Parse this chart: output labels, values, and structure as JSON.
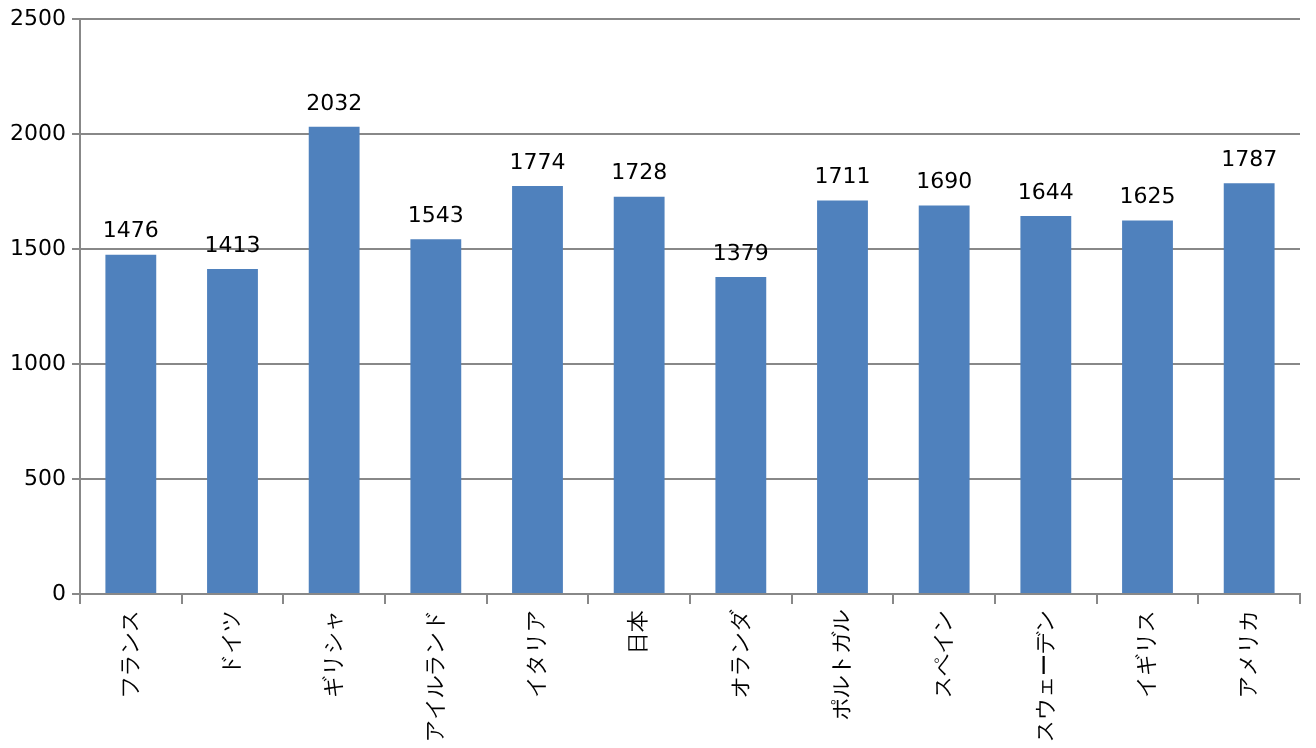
{
  "chart_data": {
    "type": "bar",
    "categories": [
      "フランス",
      "ドイツ",
      "ギリシャ",
      "アイルランド",
      "イタリア",
      "日本",
      "オランダ",
      "ポルトガル",
      "スペイン",
      "スウェーデン",
      "イギリス",
      "アメリカ"
    ],
    "values": [
      1476,
      1413,
      2032,
      1543,
      1774,
      1728,
      1379,
      1711,
      1690,
      1644,
      1625,
      1787
    ],
    "color": "#4f81bd",
    "ylim": [
      0,
      2500
    ],
    "yticks": [
      0,
      500,
      1000,
      1500,
      2000,
      2500
    ],
    "grid": "y",
    "data_labels": true
  }
}
